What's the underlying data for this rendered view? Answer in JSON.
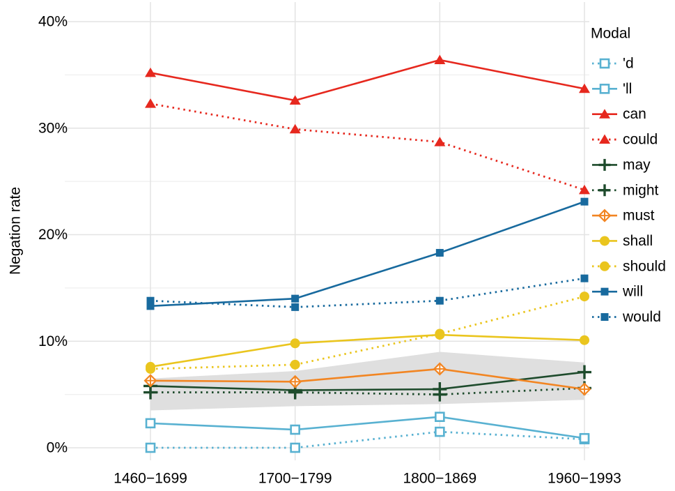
{
  "chart_data": {
    "type": "line",
    "title": "",
    "xlabel": "",
    "ylabel": "Negation rate",
    "legend_title": "Modal",
    "legend_position": "right",
    "grid": true,
    "ylim": [
      0,
      42
    ],
    "y_major_ticks": [
      0,
      10,
      20,
      30,
      40
    ],
    "y_tick_labels": [
      "0%",
      "10%",
      "20%",
      "30%",
      "40%"
    ],
    "y_minor_ticks": [
      5,
      15,
      25,
      35
    ],
    "categories": [
      "1460−1699",
      "1700−1799",
      "1800−1869",
      "1960−1993"
    ],
    "series": [
      {
        "name": "'d",
        "color": "#58B1D1",
        "dash": "dotted",
        "marker": "square-open",
        "values": [
          0.0,
          0.0,
          1.5,
          0.8
        ]
      },
      {
        "name": "'ll",
        "color": "#58B1D1",
        "dash": "solid",
        "marker": "square-open",
        "values": [
          2.3,
          1.7,
          2.9,
          0.9
        ]
      },
      {
        "name": "can",
        "color": "#E6281E",
        "dash": "solid",
        "marker": "triangle",
        "values": [
          35.2,
          32.6,
          36.4,
          33.7
        ]
      },
      {
        "name": "could",
        "color": "#E6281E",
        "dash": "dotted",
        "marker": "triangle",
        "values": [
          32.3,
          29.9,
          28.7,
          24.2
        ]
      },
      {
        "name": "may",
        "color": "#1E4B2C",
        "dash": "solid",
        "marker": "plus",
        "values": [
          5.8,
          5.4,
          5.5,
          7.1
        ]
      },
      {
        "name": "might",
        "color": "#1E4B2C",
        "dash": "dotted",
        "marker": "plus",
        "values": [
          5.2,
          5.2,
          5.0,
          5.6
        ]
      },
      {
        "name": "must",
        "color": "#F28522",
        "dash": "solid",
        "marker": "diamond-plus",
        "values": [
          6.3,
          6.2,
          7.4,
          5.5
        ]
      },
      {
        "name": "shall",
        "color": "#EAC51E",
        "dash": "solid",
        "marker": "circle",
        "values": [
          7.6,
          9.8,
          10.6,
          10.1
        ]
      },
      {
        "name": "should",
        "color": "#EAC51E",
        "dash": "dotted",
        "marker": "circle",
        "values": [
          7.4,
          7.8,
          10.7,
          14.2
        ]
      },
      {
        "name": "will",
        "color": "#186A9E",
        "dash": "solid",
        "marker": "square",
        "values": [
          13.3,
          14.0,
          18.3,
          23.1
        ]
      },
      {
        "name": "would",
        "color": "#186A9E",
        "dash": "dotted",
        "marker": "square",
        "values": [
          13.8,
          13.2,
          13.8,
          15.9
        ]
      }
    ],
    "band": {
      "name": "confidence-band",
      "color": "#DFDFDF",
      "upper": [
        6.5,
        7.2,
        9.0,
        8.0
      ],
      "lower": [
        3.5,
        3.9,
        4.1,
        4.5
      ]
    },
    "colors": {
      "grid_major": "#E3E3E3",
      "grid_minor": "#EFEFEF",
      "text": "#000000",
      "background": "#FFFFFF"
    }
  }
}
